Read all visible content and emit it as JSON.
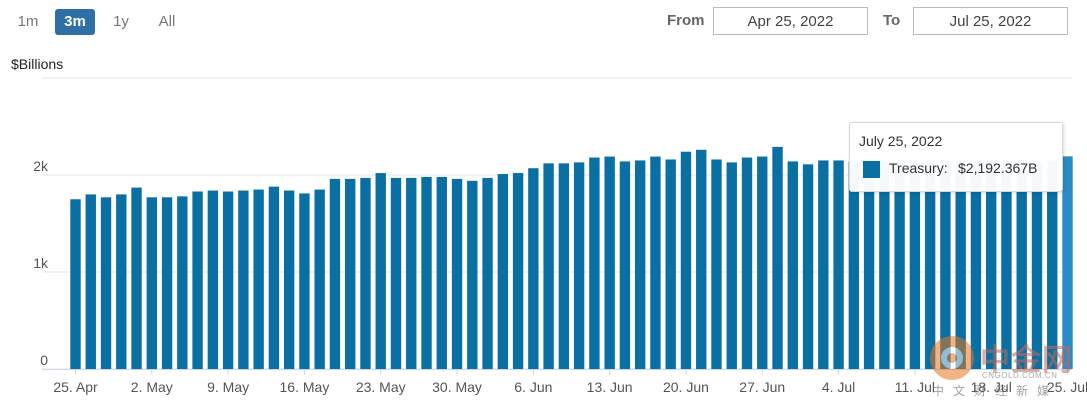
{
  "range_selector": {
    "buttons": [
      {
        "label": "1m",
        "active": false
      },
      {
        "label": "3m",
        "active": true
      },
      {
        "label": "1y",
        "active": false
      },
      {
        "label": "All",
        "active": false
      }
    ]
  },
  "date_range": {
    "from_label": "From",
    "from_value": "Apr 25, 2022",
    "to_label": "To",
    "to_value": "Jul 25, 2022"
  },
  "tooltip": {
    "date": "July 25, 2022",
    "series": "Treasury:",
    "value": "$2,192.367B"
  },
  "watermark": {
    "brand": "中金网",
    "url": "CNGOLD.COM.CN",
    "sub": "中文财经新媒"
  },
  "colors": {
    "bar": "#0a6fa3",
    "bar_highlight": "#2a8cc4",
    "grid": "#e6e6e6",
    "active_button": "#2f6fa8"
  },
  "chart_data": {
    "type": "bar",
    "ylabel": "$Billions",
    "y_ticks": [
      "0",
      "1k",
      "2k"
    ],
    "ylim": [
      0,
      3000
    ],
    "x_tick_labels": [
      "25. Apr",
      "2. May",
      "9. May",
      "16. May",
      "23. May",
      "30. May",
      "6. Jun",
      "13. Jun",
      "20. Jun",
      "27. Jun",
      "4. Jul",
      "11. Jul",
      "18. Jul",
      "25. Jul"
    ],
    "x_start": "2022-04-25",
    "x_end": "2022-07-25",
    "grid": true,
    "series": [
      {
        "name": "Treasury",
        "values": [
          1750,
          1800,
          1770,
          1800,
          1870,
          1770,
          1770,
          1780,
          1830,
          1840,
          1830,
          1840,
          1850,
          1880,
          1840,
          1810,
          1850,
          1960,
          1960,
          1970,
          2020,
          1970,
          1970,
          1980,
          1980,
          1960,
          1940,
          1970,
          2010,
          2020,
          2070,
          2120,
          2120,
          2130,
          2180,
          2190,
          2140,
          2150,
          2190,
          2160,
          2240,
          2260,
          2160,
          2130,
          2180,
          2190,
          2290,
          2140,
          2110,
          2150,
          2150,
          2140,
          2150,
          2150,
          2140,
          2150,
          2150,
          2150,
          2150,
          2150,
          2150,
          2140,
          2150,
          2140,
          2150,
          2192.367
        ]
      }
    ]
  }
}
